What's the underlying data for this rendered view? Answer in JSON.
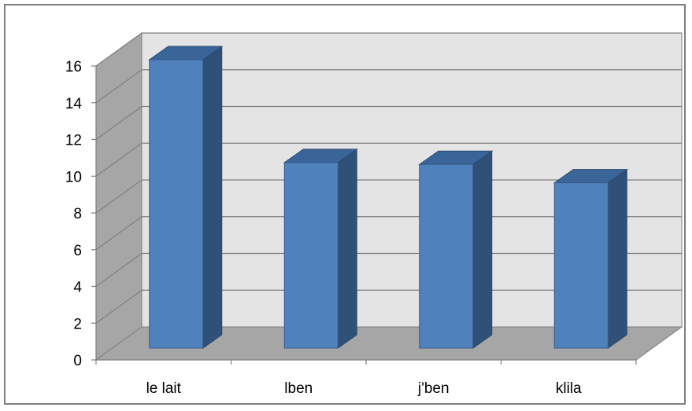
{
  "chart_data": {
    "type": "bar",
    "style": "3d-column",
    "categories": [
      "le lait",
      "lben",
      "j'ben",
      "klila"
    ],
    "values": [
      15.7,
      10.1,
      10.0,
      9.0
    ],
    "title": "",
    "xlabel": "",
    "ylabel": "",
    "ylim": [
      0,
      16
    ],
    "yticks": [
      "0",
      "2",
      "4",
      "6",
      "8",
      "10",
      "12",
      "14",
      "16"
    ],
    "grid": true,
    "legend": "none",
    "colors": {
      "bar_front": "#4f81bd",
      "bar_side": "#2f5077",
      "bar_top": "#3a6598",
      "back_wall": "#e4e4e4",
      "side_wall": "#a6a6a6",
      "floor": "#a6a6a6",
      "gridline": "#7f7f7f"
    }
  }
}
